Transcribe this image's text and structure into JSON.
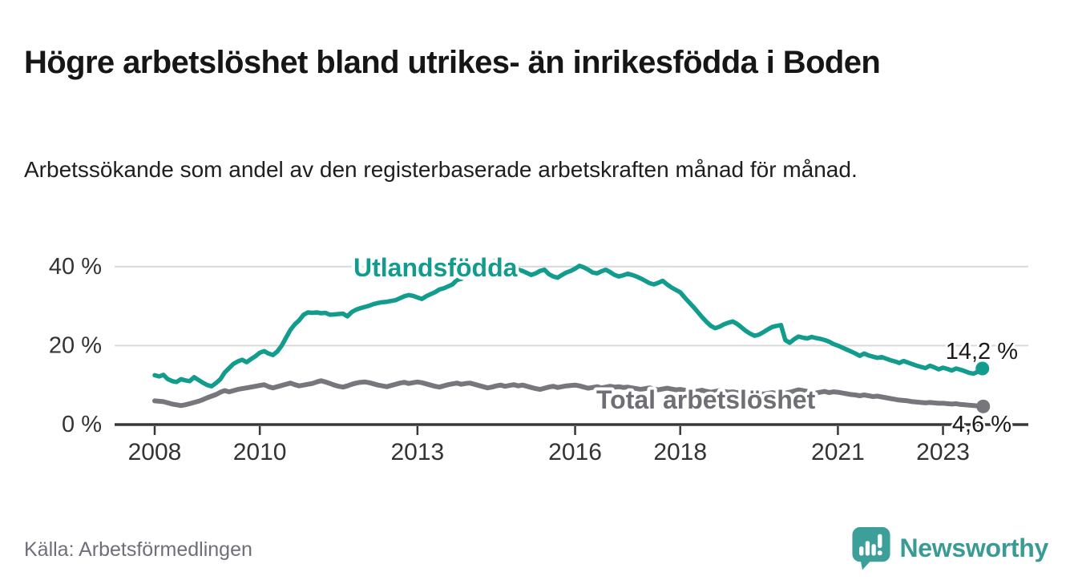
{
  "header": {
    "title": "Högre arbetslöshet bland utrikes- än inrikesfödda i Boden",
    "subtitle": "Arbetssökande som andel av den registerbaserade arbetskraften månad för månad."
  },
  "footer": {
    "source": "Källa: Arbetsförmedlingen",
    "logo_text": "Newsworthy"
  },
  "colors": {
    "teal_line": "#119c8d",
    "gray_line": "#76767c",
    "gray_label": "#6e6e74",
    "axis": "#383838",
    "grid": "#d9d9d9",
    "tick_text": "#333333",
    "value_text": "#1a1a1a",
    "logo_teal": "#3d9f99"
  },
  "chart_data": {
    "type": "line",
    "title": "Högre arbetslöshet bland utrikes- än inrikesfödda i Boden",
    "xlabel": "",
    "ylabel": "",
    "x_start_year": 2008,
    "x_interval": "monthly",
    "x_tick_years": [
      2008,
      2010,
      2013,
      2016,
      2018,
      2021,
      2023
    ],
    "y_ticks": [
      {
        "value": 0,
        "label": "0 %"
      },
      {
        "value": 20,
        "label": "20 %"
      },
      {
        "value": 40,
        "label": "40 %"
      }
    ],
    "ylim": [
      0,
      44
    ],
    "grid": "horizontal",
    "legend_position": "inline-labels",
    "series": [
      {
        "name": "Utlandsfödda",
        "end_label": "14,2 %",
        "end_value": 14.2,
        "values": [
          12.5,
          12.2,
          12.6,
          11.5,
          11.0,
          10.8,
          11.5,
          11.2,
          11.0,
          12.0,
          11.3,
          10.6,
          10.0,
          9.7,
          10.5,
          11.5,
          13.2,
          14.3,
          15.4,
          16.0,
          16.4,
          15.8,
          16.6,
          17.3,
          18.2,
          18.6,
          18.0,
          17.6,
          18.5,
          20.0,
          22.0,
          24.0,
          25.4,
          26.4,
          27.8,
          28.4,
          28.3,
          28.4,
          28.2,
          28.3,
          27.8,
          27.9,
          28.0,
          28.1,
          27.4,
          28.5,
          29.1,
          29.5,
          29.8,
          30.1,
          30.5,
          30.8,
          31.0,
          31.1,
          31.3,
          31.5,
          32.0,
          32.5,
          32.8,
          32.6,
          32.2,
          31.8,
          32.5,
          33.0,
          33.5,
          34.2,
          34.5,
          35.0,
          35.5,
          36.6,
          36.9,
          37.9,
          38.5,
          39.2,
          39.8,
          40.3,
          40.8,
          41.2,
          41.5,
          41.0,
          40.5,
          40.3,
          39.8,
          39.2,
          38.9,
          38.4,
          37.9,
          38.3,
          38.9,
          39.2,
          38.1,
          37.5,
          37.2,
          37.9,
          38.5,
          38.9,
          39.5,
          40.2,
          39.8,
          39.2,
          38.5,
          38.3,
          38.8,
          39.2,
          38.6,
          37.9,
          37.5,
          37.8,
          38.2,
          37.9,
          37.5,
          37.0,
          36.4,
          35.8,
          35.5,
          35.9,
          36.4,
          35.5,
          34.7,
          34.1,
          33.5,
          32.2,
          31.0,
          29.8,
          28.5,
          27.2,
          26.0,
          25.0,
          24.4,
          24.8,
          25.4,
          25.8,
          26.1,
          25.5,
          24.6,
          23.7,
          23.0,
          22.5,
          22.8,
          23.4,
          24.1,
          24.7,
          25.0,
          25.2,
          21.4,
          20.7,
          21.6,
          22.3,
          22.0,
          21.8,
          22.2,
          21.9,
          21.7,
          21.4,
          21.0,
          20.4,
          20.0,
          19.5,
          19.0,
          18.5,
          18.0,
          17.4,
          18.0,
          17.5,
          17.2,
          16.9,
          17.1,
          16.7,
          16.3,
          16.0,
          15.6,
          16.1,
          15.7,
          15.3,
          14.9,
          14.6,
          14.3,
          14.9,
          14.5,
          14.0,
          14.4,
          14.1,
          13.7,
          14.2,
          13.9,
          13.5,
          13.1,
          12.9,
          13.4,
          14.2
        ]
      },
      {
        "name": "Total arbetslöshet",
        "end_label": "4,6 %",
        "end_value": 4.6,
        "values": [
          6.0,
          5.9,
          5.8,
          5.5,
          5.2,
          5.0,
          4.8,
          5.0,
          5.3,
          5.6,
          5.9,
          6.3,
          6.8,
          7.2,
          7.6,
          8.2,
          8.6,
          8.3,
          8.6,
          8.9,
          9.1,
          9.3,
          9.5,
          9.7,
          9.9,
          10.1,
          9.6,
          9.3,
          9.6,
          9.9,
          10.2,
          10.5,
          10.1,
          9.8,
          10.0,
          10.2,
          10.4,
          10.8,
          11.1,
          10.8,
          10.4,
          10.0,
          9.7,
          9.5,
          9.8,
          10.2,
          10.5,
          10.7,
          10.8,
          10.6,
          10.3,
          10.0,
          9.8,
          9.6,
          9.9,
          10.2,
          10.5,
          10.7,
          10.4,
          10.6,
          10.8,
          10.6,
          10.3,
          10.0,
          9.7,
          9.5,
          9.8,
          10.1,
          10.3,
          10.5,
          10.2,
          10.4,
          10.5,
          10.2,
          9.9,
          9.6,
          9.3,
          9.5,
          9.8,
          10.0,
          9.7,
          9.9,
          10.1,
          9.8,
          10.0,
          9.7,
          9.4,
          9.1,
          8.9,
          9.2,
          9.5,
          9.7,
          9.4,
          9.6,
          9.8,
          9.9,
          10.0,
          9.8,
          9.5,
          9.2,
          9.4,
          9.6,
          9.3,
          9.5,
          9.7,
          9.5,
          9.6,
          9.4,
          9.5,
          9.3,
          9.1,
          8.9,
          9.1,
          9.3,
          9.0,
          8.8,
          9.0,
          9.2,
          9.0,
          8.8,
          8.9,
          8.7,
          8.5,
          8.3,
          8.5,
          8.7,
          8.4,
          8.2,
          8.4,
          8.6,
          8.4,
          8.2,
          8.3,
          8.1,
          7.9,
          7.8,
          8.0,
          8.2,
          7.9,
          7.7,
          7.9,
          8.1,
          7.9,
          7.8,
          8.0,
          8.2,
          8.5,
          8.8,
          8.6,
          8.4,
          8.2,
          8.0,
          8.2,
          8.4,
          8.1,
          8.3,
          8.2,
          8.0,
          7.8,
          7.6,
          7.5,
          7.3,
          7.5,
          7.3,
          7.1,
          7.2,
          7.0,
          6.8,
          6.6,
          6.4,
          6.2,
          6.1,
          6.0,
          5.8,
          5.7,
          5.6,
          5.5,
          5.6,
          5.5,
          5.4,
          5.4,
          5.3,
          5.2,
          5.3,
          5.1,
          5.0,
          4.9,
          4.8,
          4.7,
          4.6
        ]
      }
    ]
  }
}
